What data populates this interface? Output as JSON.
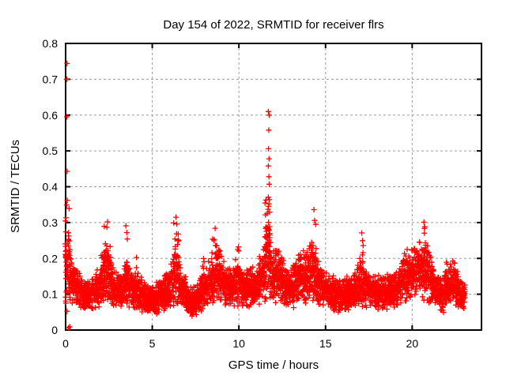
{
  "chart_data": {
    "type": "scatter",
    "title": "Day 154 of 2022, SRMTID for receiver flrs",
    "xlabel": "GPS time / hours",
    "ylabel": "SRMTID / TECUs",
    "xlim": [
      0,
      24
    ],
    "ylim": [
      0,
      0.8
    ],
    "xticks": [
      {
        "v": 0,
        "label": "0"
      },
      {
        "v": 5,
        "label": "5"
      },
      {
        "v": 10,
        "label": "10"
      },
      {
        "v": 15,
        "label": "15"
      },
      {
        "v": 20,
        "label": "20"
      }
    ],
    "yticks": [
      {
        "v": 0.0,
        "label": "0"
      },
      {
        "v": 0.1,
        "label": "0.1"
      },
      {
        "v": 0.2,
        "label": "0.2"
      },
      {
        "v": 0.3,
        "label": "0.3"
      },
      {
        "v": 0.4,
        "label": "0.4"
      },
      {
        "v": 0.5,
        "label": "0.5"
      },
      {
        "v": 0.6,
        "label": "0.6"
      },
      {
        "v": 0.7,
        "label": "0.7"
      },
      {
        "v": 0.8,
        "label": "0.8"
      }
    ],
    "grid": {
      "show": true,
      "style": "dashed",
      "color": "#9c9c9c"
    },
    "frame_color": "#000000",
    "marker": {
      "shape": "plus",
      "color": "#ff0000",
      "size": 7
    },
    "series_name": "SRMTID",
    "sampling": {
      "t_start": 0.0,
      "t_end": 23.05,
      "dt": 0.008,
      "seed": 154,
      "extra_point_prob": 0.45,
      "floor": 0.03
    },
    "baseline_envelope": [
      [
        0.0,
        0.16,
        0.12
      ],
      [
        0.3,
        0.15,
        0.07
      ],
      [
        0.6,
        0.13,
        0.055
      ],
      [
        1.0,
        0.1,
        0.045
      ],
      [
        1.4,
        0.095,
        0.04
      ],
      [
        1.8,
        0.12,
        0.055
      ],
      [
        2.2,
        0.15,
        0.075
      ],
      [
        2.45,
        0.16,
        0.085
      ],
      [
        2.8,
        0.115,
        0.05
      ],
      [
        3.2,
        0.11,
        0.05
      ],
      [
        3.55,
        0.13,
        0.065
      ],
      [
        3.9,
        0.115,
        0.055
      ],
      [
        4.3,
        0.1,
        0.05
      ],
      [
        4.7,
        0.085,
        0.045
      ],
      [
        5.2,
        0.085,
        0.045
      ],
      [
        5.6,
        0.1,
        0.05
      ],
      [
        5.95,
        0.11,
        0.055
      ],
      [
        6.35,
        0.15,
        0.085
      ],
      [
        6.7,
        0.115,
        0.05
      ],
      [
        7.1,
        0.085,
        0.045
      ],
      [
        7.5,
        0.08,
        0.045
      ],
      [
        7.95,
        0.115,
        0.055
      ],
      [
        8.4,
        0.14,
        0.07
      ],
      [
        8.8,
        0.16,
        0.085
      ],
      [
        9.2,
        0.125,
        0.055
      ],
      [
        9.6,
        0.12,
        0.055
      ],
      [
        9.9,
        0.14,
        0.07
      ],
      [
        10.2,
        0.115,
        0.05
      ],
      [
        10.6,
        0.12,
        0.055
      ],
      [
        11.0,
        0.125,
        0.055
      ],
      [
        11.4,
        0.16,
        0.09
      ],
      [
        11.65,
        0.2,
        0.12
      ],
      [
        11.9,
        0.17,
        0.1
      ],
      [
        12.2,
        0.15,
        0.08
      ],
      [
        12.6,
        0.13,
        0.065
      ],
      [
        12.95,
        0.12,
        0.06
      ],
      [
        13.4,
        0.14,
        0.07
      ],
      [
        13.8,
        0.15,
        0.075
      ],
      [
        14.2,
        0.16,
        0.09
      ],
      [
        14.55,
        0.14,
        0.07
      ],
      [
        15.0,
        0.115,
        0.055
      ],
      [
        15.5,
        0.1,
        0.05
      ],
      [
        16.0,
        0.095,
        0.05
      ],
      [
        16.5,
        0.105,
        0.05
      ],
      [
        16.95,
        0.13,
        0.07
      ],
      [
        17.2,
        0.135,
        0.07
      ],
      [
        17.6,
        0.11,
        0.05
      ],
      [
        18.1,
        0.1,
        0.05
      ],
      [
        18.6,
        0.105,
        0.05
      ],
      [
        19.1,
        0.115,
        0.055
      ],
      [
        19.5,
        0.14,
        0.065
      ],
      [
        20.0,
        0.155,
        0.075
      ],
      [
        20.5,
        0.17,
        0.08
      ],
      [
        20.9,
        0.155,
        0.075
      ],
      [
        21.3,
        0.115,
        0.055
      ],
      [
        21.7,
        0.105,
        0.055
      ],
      [
        22.1,
        0.125,
        0.06
      ],
      [
        22.45,
        0.13,
        0.06
      ],
      [
        22.8,
        0.1,
        0.045
      ],
      [
        23.05,
        0.09,
        0.04
      ]
    ],
    "bursts": [
      {
        "t": 0.1,
        "w": 0.15,
        "n": 22,
        "y0": 0.2,
        "y1": 0.355
      },
      {
        "t": 2.4,
        "w": 0.18,
        "n": 14,
        "y0": 0.19,
        "y1": 0.295
      },
      {
        "t": 3.5,
        "w": 0.1,
        "n": 6,
        "y0": 0.16,
        "y1": 0.235
      },
      {
        "t": 4.1,
        "w": 0.08,
        "n": 4,
        "y0": 0.15,
        "y1": 0.205
      },
      {
        "t": 5.9,
        "w": 0.1,
        "n": 5,
        "y0": 0.14,
        "y1": 0.2
      },
      {
        "t": 6.38,
        "w": 0.15,
        "n": 12,
        "y0": 0.2,
        "y1": 0.3
      },
      {
        "t": 7.95,
        "w": 0.1,
        "n": 5,
        "y0": 0.15,
        "y1": 0.205
      },
      {
        "t": 8.7,
        "w": 0.3,
        "n": 14,
        "y0": 0.2,
        "y1": 0.275
      },
      {
        "t": 9.9,
        "w": 0.1,
        "n": 7,
        "y0": 0.17,
        "y1": 0.235
      },
      {
        "t": 11.65,
        "w": 0.15,
        "n": 26,
        "y0": 0.22,
        "y1": 0.365
      },
      {
        "t": 12.25,
        "w": 0.15,
        "n": 8,
        "y0": 0.17,
        "y1": 0.25
      },
      {
        "t": 13.6,
        "w": 0.2,
        "n": 8,
        "y0": 0.17,
        "y1": 0.235
      },
      {
        "t": 14.35,
        "w": 0.12,
        "n": 12,
        "y0": 0.19,
        "y1": 0.3
      },
      {
        "t": 17.1,
        "w": 0.1,
        "n": 8,
        "y0": 0.17,
        "y1": 0.26
      },
      {
        "t": 19.8,
        "w": 0.3,
        "n": 10,
        "y0": 0.18,
        "y1": 0.25
      },
      {
        "t": 20.65,
        "w": 0.25,
        "n": 14,
        "y0": 0.19,
        "y1": 0.285
      },
      {
        "t": 21.95,
        "w": 0.1,
        "n": 5,
        "y0": 0.14,
        "y1": 0.2
      },
      {
        "t": 22.45,
        "w": 0.12,
        "n": 5,
        "y0": 0.15,
        "y1": 0.195
      }
    ],
    "outliers": [
      [
        0.08,
        0.744
      ],
      [
        0.06,
        0.7
      ],
      [
        0.07,
        0.595
      ],
      [
        0.09,
        0.443
      ],
      [
        0.1,
        0.362
      ],
      [
        0.06,
        0.349
      ],
      [
        0.16,
        0.006
      ],
      [
        0.24,
        0.009
      ],
      [
        2.42,
        0.302
      ],
      [
        2.38,
        0.287
      ],
      [
        3.48,
        0.291
      ],
      [
        3.53,
        0.272
      ],
      [
        3.56,
        0.254
      ],
      [
        6.37,
        0.315
      ],
      [
        6.42,
        0.296
      ],
      [
        8.63,
        0.284
      ],
      [
        9.93,
        0.225
      ],
      [
        11.7,
        0.61
      ],
      [
        11.75,
        0.6
      ],
      [
        11.72,
        0.558
      ],
      [
        11.71,
        0.506
      ],
      [
        11.74,
        0.478
      ],
      [
        11.7,
        0.458
      ],
      [
        11.73,
        0.428
      ],
      [
        11.75,
        0.407
      ],
      [
        11.7,
        0.371
      ],
      [
        11.73,
        0.352
      ],
      [
        11.68,
        0.337
      ],
      [
        11.77,
        0.329
      ],
      [
        14.33,
        0.336
      ],
      [
        14.37,
        0.306
      ],
      [
        17.09,
        0.271
      ],
      [
        20.68,
        0.301
      ],
      [
        20.73,
        0.288
      ]
    ]
  }
}
